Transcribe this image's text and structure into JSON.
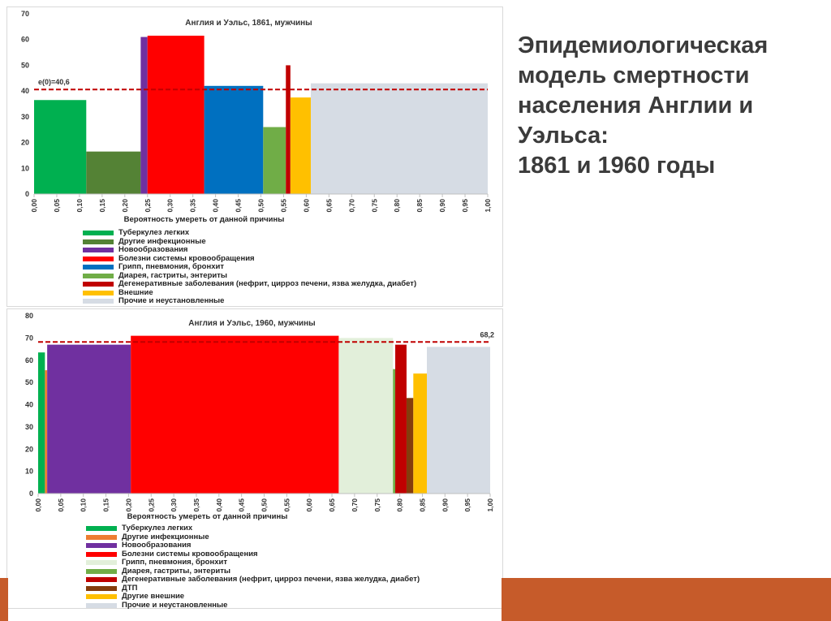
{
  "headline": {
    "lines": [
      "Эпидемиологическая",
      "модель смертности",
      "населения Англии и",
      "Уэльса:",
      "1861 и 1960 годы"
    ]
  },
  "colors": {
    "accent_stripe": "#c65b2a"
  },
  "chart_data": [
    {
      "type": "bar",
      "title": "Англия и Уэльс, 1861, мужчины",
      "xlabel": "Вероятность умереть от данной причины",
      "ylabel": "",
      "xlim": [
        0,
        1
      ],
      "ylim": [
        0,
        70
      ],
      "yticks": [
        "0",
        "10",
        "20",
        "30",
        "40",
        "50",
        "60",
        "70"
      ],
      "xticks": [
        "0,00",
        "0,05",
        "0,10",
        "0,15",
        "0,20",
        "0,25",
        "0,30",
        "0,35",
        "0,40",
        "0,45",
        "0,50",
        "0,55",
        "0,60",
        "0,65",
        "0,70",
        "0,75",
        "0,80",
        "0,85",
        "0,90",
        "0,95",
        "1,00"
      ],
      "reference_line": {
        "value": 40.6,
        "label": "e(0)=40,6",
        "color": "#c00000"
      },
      "legend": [
        {
          "name": "Туберкулез легких",
          "color": "#00b050"
        },
        {
          "name": "Другие инфекционные",
          "color": "#548235"
        },
        {
          "name": "Новообразования",
          "color": "#7030a0"
        },
        {
          "name": "Болезни системы кровообращения",
          "color": "#ff0000"
        },
        {
          "name": "Грипп, пневмония, бронхит",
          "color": "#0070c0"
        },
        {
          "name": "Диарея, гастриты, энтериты",
          "color": "#70ad47"
        },
        {
          "name": "Дегенеративные заболевания (нефрит, цирроз печени, язва желудка, диабет)",
          "color": "#c00000"
        },
        {
          "name": "Внешние",
          "color": "#ffc000"
        },
        {
          "name": "Прочие и неустановленные",
          "color": "#d6dce4"
        }
      ],
      "bars": [
        {
          "x0": 0.0,
          "x1": 0.115,
          "value": 36.5,
          "color": "#00b050"
        },
        {
          "x0": 0.115,
          "x1": 0.235,
          "value": 16.5,
          "color": "#548235"
        },
        {
          "x0": 0.235,
          "x1": 0.25,
          "value": 61,
          "color": "#7030a0"
        },
        {
          "x0": 0.25,
          "x1": 0.375,
          "value": 61.5,
          "color": "#ff0000"
        },
        {
          "x0": 0.375,
          "x1": 0.505,
          "value": 42,
          "color": "#0070c0"
        },
        {
          "x0": 0.505,
          "x1": 0.555,
          "value": 26,
          "color": "#70ad47"
        },
        {
          "x0": 0.555,
          "x1": 0.565,
          "value": 50,
          "color": "#c00000"
        },
        {
          "x0": 0.565,
          "x1": 0.61,
          "value": 37.5,
          "color": "#ffc000"
        },
        {
          "x0": 0.61,
          "x1": 1.0,
          "value": 43,
          "color": "#d6dce4"
        }
      ]
    },
    {
      "type": "bar",
      "title": "Англия и Уэльс, 1960, мужчины",
      "xlabel": "Вероятность умереть от данной причины",
      "ylabel": "",
      "xlim": [
        0,
        1
      ],
      "ylim": [
        0,
        80
      ],
      "yticks": [
        "0",
        "10",
        "20",
        "30",
        "40",
        "50",
        "60",
        "70",
        "80"
      ],
      "xticks": [
        "0,00",
        "0,05",
        "0,10",
        "0,15",
        "0,20",
        "0,25",
        "0,30",
        "0,35",
        "0,40",
        "0,45",
        "0,50",
        "0,55",
        "0,60",
        "0,65",
        "0,70",
        "0,75",
        "0,80",
        "0,85",
        "0,90",
        "0,95",
        "1,00"
      ],
      "reference_line": {
        "value": 68.2,
        "label": "68,2",
        "color": "#c00000"
      },
      "legend": [
        {
          "name": "Туберкулез легких",
          "color": "#00b050"
        },
        {
          "name": "Другие инфекционные",
          "color": "#ed7d31"
        },
        {
          "name": "Новообразования",
          "color": "#7030a0"
        },
        {
          "name": "Болезни системы кровообращения",
          "color": "#ff0000"
        },
        {
          "name": "Грипп, пневмония, бронхит",
          "color": "#e2efda"
        },
        {
          "name": "Диарея, гастриты, энтериты",
          "color": "#70ad47"
        },
        {
          "name": "Дегенеративные заболевания (нефрит, цирроз печени, язва желудка, диабет)",
          "color": "#c00000"
        },
        {
          "name": "ДТП",
          "color": "#843c0c"
        },
        {
          "name": "Другие внешние",
          "color": "#ffc000"
        },
        {
          "name": "Прочие и неустановленные",
          "color": "#d6dce4"
        }
      ],
      "bars": [
        {
          "x0": 0.0,
          "x1": 0.015,
          "value": 63.5,
          "color": "#00b050"
        },
        {
          "x0": 0.015,
          "x1": 0.02,
          "value": 55.5,
          "color": "#ed7d31"
        },
        {
          "x0": 0.02,
          "x1": 0.205,
          "value": 67,
          "color": "#7030a0"
        },
        {
          "x0": 0.205,
          "x1": 0.665,
          "value": 71,
          "color": "#ff0000"
        },
        {
          "x0": 0.665,
          "x1": 0.785,
          "value": 70,
          "color": "#e2efda"
        },
        {
          "x0": 0.785,
          "x1": 0.79,
          "value": 56,
          "color": "#70ad47"
        },
        {
          "x0": 0.79,
          "x1": 0.815,
          "value": 67,
          "color": "#c00000"
        },
        {
          "x0": 0.815,
          "x1": 0.83,
          "value": 43,
          "color": "#843c0c"
        },
        {
          "x0": 0.83,
          "x1": 0.86,
          "value": 54,
          "color": "#ffc000"
        },
        {
          "x0": 0.86,
          "x1": 1.0,
          "value": 66,
          "color": "#d6dce4"
        }
      ]
    }
  ]
}
